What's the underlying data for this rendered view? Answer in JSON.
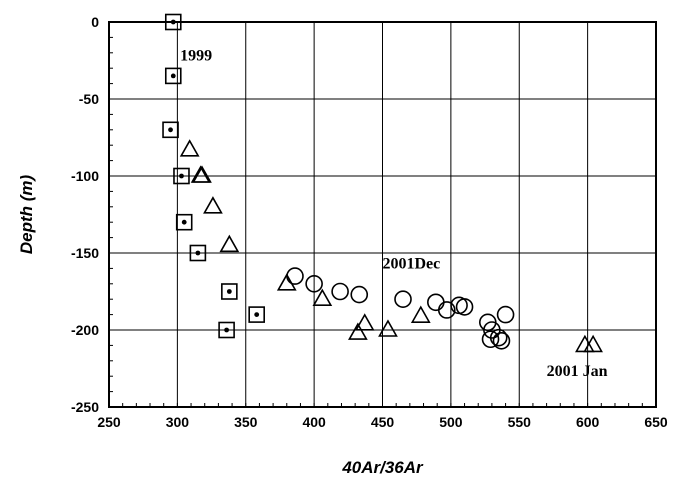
{
  "chart_data": {
    "type": "scatter",
    "title": "",
    "xlabel": "40Ar/36Ar",
    "ylabel": "Depth (m)",
    "xlim": [
      250,
      650
    ],
    "ylim": [
      -250,
      0
    ],
    "x_ticks": [
      250,
      300,
      350,
      400,
      450,
      500,
      550,
      600,
      650
    ],
    "y_ticks": [
      0,
      -50,
      -100,
      -150,
      -200,
      -250
    ],
    "grid": true,
    "legend": "none",
    "series": [
      {
        "marker": "square-dot",
        "points": [
          [
            297,
            0
          ],
          [
            297,
            -35
          ],
          [
            295,
            -70
          ],
          [
            303,
            -100
          ],
          [
            305,
            -130
          ],
          [
            315,
            -150
          ],
          [
            338,
            -175
          ],
          [
            336,
            -200
          ],
          [
            358,
            -190
          ]
        ]
      },
      {
        "marker": "triangle",
        "points": [
          [
            309,
            -83
          ],
          [
            317,
            -100
          ],
          [
            318,
            -100
          ],
          [
            326,
            -120
          ],
          [
            338,
            -145
          ],
          [
            380,
            -170
          ],
          [
            406,
            -180
          ],
          [
            437,
            -196
          ],
          [
            432,
            -202
          ],
          [
            454,
            -200
          ],
          [
            478,
            -191
          ],
          [
            598,
            -210
          ],
          [
            604,
            -210
          ]
        ]
      },
      {
        "marker": "circle",
        "points": [
          [
            386,
            -165
          ],
          [
            400,
            -170
          ],
          [
            419,
            -175
          ],
          [
            433,
            -177
          ],
          [
            465,
            -180
          ],
          [
            489,
            -182
          ],
          [
            497,
            -187
          ],
          [
            506,
            -184
          ],
          [
            510,
            -185
          ],
          [
            527,
            -195
          ],
          [
            530,
            -200
          ],
          [
            529,
            -206
          ],
          [
            535,
            -205
          ],
          [
            537,
            -207
          ],
          [
            540,
            -190
          ]
        ]
      }
    ],
    "annotations": [
      {
        "text": "1999",
        "x": 302,
        "y": -25
      },
      {
        "text": "2001Dec",
        "x": 450,
        "y": -160
      },
      {
        "text": "2001 Jan",
        "x": 570,
        "y": -230
      }
    ]
  }
}
